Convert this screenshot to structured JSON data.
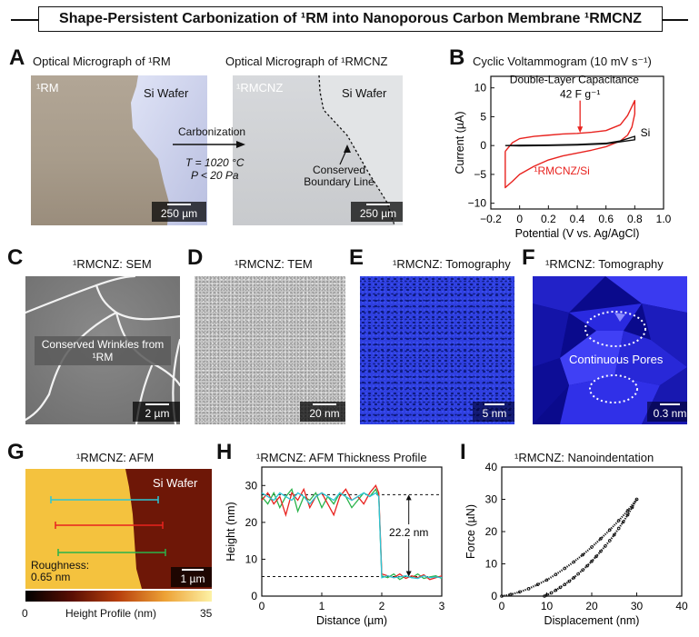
{
  "title": "Shape-Persistent Carbonization of ¹RM into Nanoporous Carbon Membrane ¹RMCNZ",
  "panels": {
    "A": {
      "label": "A",
      "left_caption": "Optical Micrograph of ¹RM",
      "right_caption": "Optical Micrograph of ¹RMCNZ",
      "left_region": "¹RM",
      "left_wafer": "Si Wafer",
      "right_region": "¹RMCNZ",
      "right_wafer": "Si Wafer",
      "process": "Carbonization",
      "temp": "T = 1020 °C",
      "pressure": "P < 20 Pa",
      "boundary": "Conserved Boundary Line",
      "scale_left": "250 µm",
      "scale_right": "250 µm"
    },
    "C": {
      "label": "C",
      "caption": "¹RMCNZ: SEM",
      "annotation": "Conserved Wrinkles from ¹RM",
      "scale": "2 µm"
    },
    "D": {
      "label": "D",
      "caption": "¹RMCNZ: TEM",
      "scale": "20 nm"
    },
    "E": {
      "label": "E",
      "caption": "¹RMCNZ: Tomography",
      "scale": "5 nm"
    },
    "F": {
      "label": "F",
      "caption": "¹RMCNZ: Tomography",
      "annotation": "Continuous Pores",
      "scale": "0.3 nm"
    },
    "G": {
      "label": "G",
      "caption": "¹RMCNZ: AFM",
      "wafer": "Si Wafer",
      "roughness": "Roughness: 0.65 nm",
      "scale": "1 µm",
      "colorbar_min": "0",
      "colorbar_max": "35",
      "colorbar_label": "Height Profile (nm)"
    }
  },
  "chart_data": [
    {
      "id": "B",
      "label": "B",
      "type": "line",
      "title": "Cyclic Voltammogram (10 mV s⁻¹)",
      "xlabel": "Potential (V vs. Ag/AgCl)",
      "ylabel": "Current (µA)",
      "xlim": [
        -0.2,
        1.0
      ],
      "ylim": [
        -11,
        12
      ],
      "xticks": [
        -0.2,
        0,
        0.2,
        0.4,
        0.6,
        0.8,
        1.0
      ],
      "xtick_labels": [
        "−0.2",
        "0",
        "0.2",
        "0.4",
        "0.6",
        "0.8",
        "1.0"
      ],
      "yticks": [
        -10,
        -5,
        0,
        5,
        10
      ],
      "ytick_labels": [
        "−10",
        "−5",
        "0",
        "5",
        "10"
      ],
      "annotation": "Double-Layer Capacitance",
      "annotation_value": "42 F g⁻¹",
      "series": [
        {
          "name": "¹RMCNZ/Si",
          "color": "#e8231f",
          "x": [
            -0.1,
            -0.05,
            0.0,
            0.1,
            0.2,
            0.3,
            0.4,
            0.5,
            0.6,
            0.7,
            0.75,
            0.8,
            0.8,
            0.78,
            0.75,
            0.7,
            0.6,
            0.5,
            0.4,
            0.3,
            0.2,
            0.1,
            0.0,
            -0.05,
            -0.1,
            -0.1
          ],
          "y": [
            -1.0,
            0.5,
            1.2,
            1.6,
            1.8,
            2.0,
            2.1,
            2.3,
            2.6,
            3.6,
            5.2,
            7.8,
            5.5,
            3.2,
            1.8,
            0.8,
            -0.2,
            -0.8,
            -1.3,
            -1.8,
            -2.5,
            -3.6,
            -5.0,
            -6.2,
            -7.3,
            -1.0
          ]
        },
        {
          "name": "Si",
          "color": "#111111",
          "x": [
            -0.1,
            0.0,
            0.2,
            0.4,
            0.6,
            0.7,
            0.8,
            0.8,
            0.6,
            0.4,
            0.2,
            0.0,
            -0.1
          ],
          "y": [
            0.0,
            0.05,
            0.1,
            0.2,
            0.4,
            0.8,
            1.6,
            1.0,
            0.3,
            0.1,
            0.0,
            -0.05,
            0.0
          ]
        }
      ]
    },
    {
      "id": "H",
      "label": "H",
      "type": "line",
      "title": "¹RMCNZ: AFM Thickness Profile",
      "xlabel": "Distance (µm)",
      "ylabel": "Height (nm)",
      "xlim": [
        0,
        3
      ],
      "ylim": [
        0,
        35
      ],
      "xticks": [
        0,
        1,
        2,
        3
      ],
      "yticks": [
        0,
        10,
        20,
        30
      ],
      "annotation": "22.2 nm",
      "reference_lines": [
        27.5,
        5.3
      ],
      "series": [
        {
          "name": "",
          "color": "#2ab34a",
          "x": [
            0,
            0.1,
            0.2,
            0.3,
            0.4,
            0.5,
            0.6,
            0.7,
            0.8,
            0.9,
            1.0,
            1.1,
            1.2,
            1.3,
            1.4,
            1.5,
            1.6,
            1.7,
            1.8,
            1.9,
            1.95,
            2.0,
            2.1,
            2.2,
            2.3,
            2.4,
            2.5,
            2.6,
            2.7,
            2.8,
            2.9,
            3.0
          ],
          "y": [
            27,
            25,
            28,
            24,
            27,
            29,
            23,
            27,
            26,
            28,
            24,
            27,
            25,
            28,
            27,
            24,
            26,
            28,
            27,
            29,
            27,
            5.5,
            5,
            6,
            4.5,
            5.5,
            5,
            6,
            4.8,
            5.2,
            5.5,
            4.8
          ]
        },
        {
          "name": "",
          "color": "#e8231f",
          "x": [
            0,
            0.1,
            0.2,
            0.3,
            0.4,
            0.5,
            0.6,
            0.7,
            0.8,
            0.9,
            1.0,
            1.1,
            1.2,
            1.3,
            1.4,
            1.5,
            1.6,
            1.7,
            1.8,
            1.9,
            1.95,
            2.0,
            2.1,
            2.2,
            2.3,
            2.4,
            2.5,
            2.6,
            2.7,
            2.8,
            2.9,
            3.0
          ],
          "y": [
            26,
            28,
            25,
            27,
            22,
            28,
            26,
            29,
            24,
            27,
            28,
            25,
            22,
            27,
            29,
            26,
            27,
            25,
            28,
            30,
            28,
            6,
            5.5,
            5,
            6,
            4.8,
            5.5,
            5,
            5.8,
            4.5,
            5,
            5.5
          ]
        },
        {
          "name": "",
          "color": "#2bc6d6",
          "x": [
            0,
            0.1,
            0.2,
            0.3,
            0.4,
            0.5,
            0.6,
            0.7,
            0.8,
            0.9,
            1.0,
            1.1,
            1.2,
            1.3,
            1.4,
            1.5,
            1.6,
            1.7,
            1.8,
            1.9,
            1.95,
            2.0,
            2.1,
            2.2,
            2.3,
            2.4,
            2.5,
            2.6,
            2.7,
            2.8,
            2.9,
            3.0
          ],
          "y": [
            28,
            27,
            26,
            28,
            27,
            26,
            28,
            27,
            25,
            27,
            28,
            27,
            26,
            28,
            27,
            26,
            27,
            28,
            27,
            28,
            27,
            5,
            5.5,
            5,
            5.2,
            5.5,
            5,
            4.8,
            5.5,
            5,
            5.2,
            5
          ]
        }
      ]
    },
    {
      "id": "I",
      "label": "I",
      "type": "scatter",
      "title": "¹RMCNZ: Nanoindentation",
      "xlabel": "Displacement (nm)",
      "ylabel": "Force (µN)",
      "xlim": [
        0,
        40
      ],
      "ylim": [
        0,
        40
      ],
      "xticks": [
        0,
        10,
        20,
        30,
        40
      ],
      "yticks": [
        0,
        10,
        20,
        30,
        40
      ],
      "series": [
        {
          "name": "",
          "color": "#111111",
          "x": [
            0,
            2,
            4,
            6,
            8,
            10,
            12,
            14,
            16,
            18,
            20,
            22,
            24,
            26,
            28,
            30
          ],
          "y": [
            0,
            0.5,
            1.3,
            2.3,
            3.6,
            5.0,
            6.7,
            8.6,
            10.6,
            12.8,
            15.2,
            17.8,
            20.5,
            23.4,
            26.5,
            30
          ]
        },
        {
          "name": "",
          "color": "#111111",
          "x": [
            30,
            29,
            28,
            27,
            26,
            25,
            24,
            23,
            22,
            21,
            20,
            19,
            18,
            17,
            16,
            15,
            14,
            13,
            12,
            11,
            10,
            9.5
          ],
          "y": [
            30,
            27.5,
            25.2,
            23,
            21,
            19,
            17.2,
            15.5,
            13.9,
            12.3,
            10.8,
            9.4,
            8.1,
            6.9,
            5.7,
            4.6,
            3.6,
            2.7,
            1.8,
            1.0,
            0.3,
            0
          ]
        }
      ]
    }
  ]
}
